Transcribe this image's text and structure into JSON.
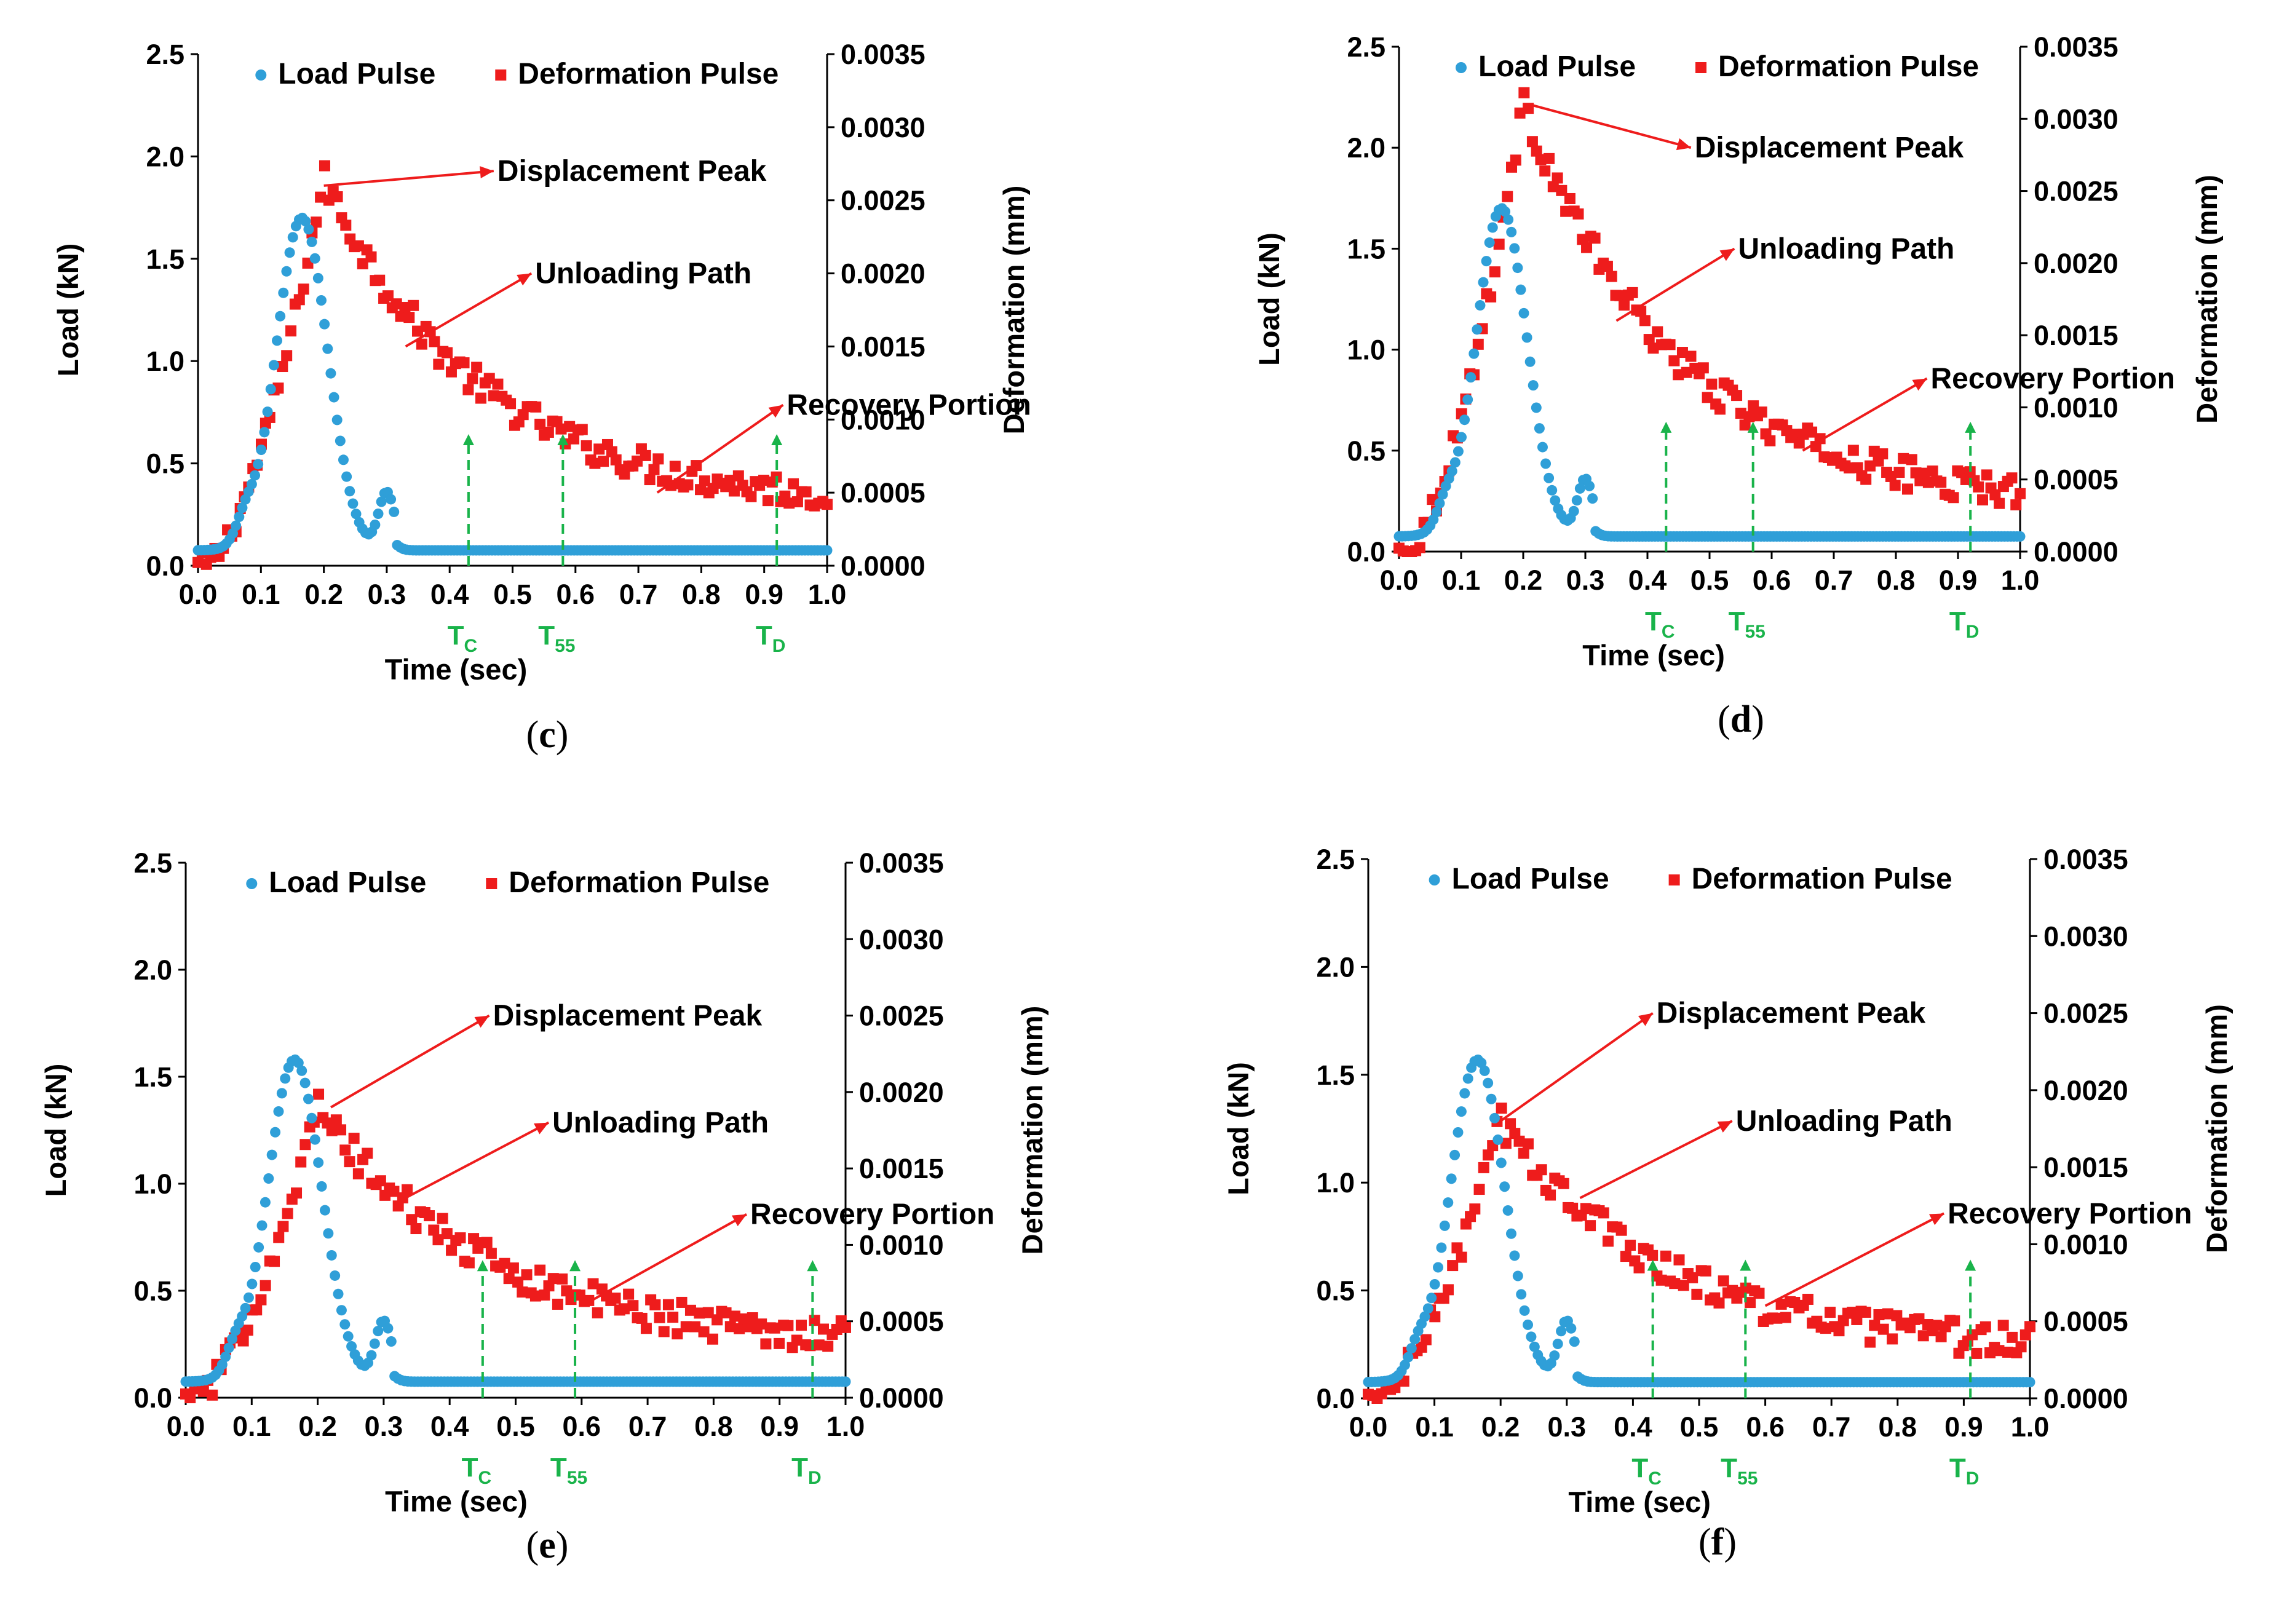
{
  "colors": {
    "load": "#2f9fd8",
    "deformation": "#ee1c1c",
    "annotation": "#ee1c1c",
    "time_marker": "#19b34a",
    "axis": "#000000"
  },
  "chart_data": [
    {
      "panel": "(c)",
      "type": "scatter",
      "xlabel": "Time (sec)",
      "ylabel": "Load (kN)",
      "y2label": "Deformation (mm)",
      "xlim": [
        0.0,
        1.0
      ],
      "ylim": [
        0.0,
        2.5
      ],
      "y2lim": [
        0.0,
        0.0035
      ],
      "xticks": [
        "0.0",
        "0.1",
        "0.2",
        "0.3",
        "0.4",
        "0.5",
        "0.6",
        "0.7",
        "0.8",
        "0.9",
        "1.0"
      ],
      "yticks": [
        "0.0",
        "0.5",
        "1.0",
        "1.5",
        "2.0",
        "2.5"
      ],
      "y2ticks": [
        "0.0000",
        "0.0005",
        "0.0010",
        "0.0015",
        "0.0020",
        "0.0025",
        "0.0030",
        "0.0035"
      ],
      "legend": {
        "placement": "top-center",
        "load": "Load Pulse",
        "deformation": "Deformation Pulse"
      },
      "load_peak": 1.7,
      "def_peak": 0.00265,
      "def_end": 0.0004,
      "series": [
        {
          "name": "Load Pulse",
          "axis": "left",
          "x": [
            0.0,
            0.02,
            0.04,
            0.06,
            0.08,
            0.1,
            0.12,
            0.14,
            0.16,
            0.18,
            0.2,
            0.22,
            0.24,
            0.26,
            0.28,
            0.3,
            0.32,
            0.35,
            0.4,
            0.5,
            0.6,
            0.7,
            0.8,
            0.9,
            1.0
          ],
          "y": [
            0.06,
            0.15,
            0.3,
            0.4,
            0.45,
            0.75,
            1.2,
            1.55,
            1.7,
            1.68,
            1.45,
            1.1,
            0.8,
            0.55,
            0.42,
            0.4,
            0.2,
            0.1,
            0.08,
            0.08,
            0.08,
            0.08,
            0.08,
            0.08,
            0.08
          ]
        },
        {
          "name": "Deformation Pulse",
          "axis": "right",
          "x": [
            0.0,
            0.04,
            0.08,
            0.12,
            0.16,
            0.2,
            0.24,
            0.28,
            0.32,
            0.36,
            0.4,
            0.45,
            0.5,
            0.55,
            0.6,
            0.7,
            0.8,
            0.9,
            1.0
          ],
          "y": [
            0.0,
            0.0002,
            0.0005,
            0.0012,
            0.002,
            0.0027,
            0.0025,
            0.0019,
            0.0015,
            0.0012,
            0.001,
            0.0009,
            0.0008,
            0.0008,
            0.0007,
            0.0006,
            0.0005,
            0.00045,
            0.0004
          ]
        }
      ],
      "annotations": [
        {
          "text": "Displacement Peak",
          "arrow_from": [
            0.2,
            0.0026
          ],
          "arrow_to": [
            0.47,
            0.0027
          ]
        },
        {
          "text": "Unloading Path",
          "arrow_from": [
            0.33,
            0.0015
          ],
          "arrow_to": [
            0.53,
            0.002
          ]
        },
        {
          "text": "Recovery Portion",
          "arrow_from": [
            0.73,
            0.0005
          ],
          "arrow_to": [
            0.93,
            0.0011
          ]
        }
      ],
      "markers": [
        {
          "label": "T",
          "sub": "C",
          "x": 0.43,
          "top": 0.0009
        },
        {
          "label": "T",
          "sub": "55",
          "x": 0.58,
          "top": 0.0009
        },
        {
          "label": "T",
          "sub": "D",
          "x": 0.92,
          "top": 0.0009
        }
      ]
    },
    {
      "panel": "(d)",
      "type": "scatter",
      "xlabel": "Time (sec)",
      "ylabel": "Load (kN)",
      "y2label": "Deformation (mm)",
      "xlim": [
        0.0,
        1.0
      ],
      "ylim": [
        0.0,
        2.5
      ],
      "y2lim": [
        0.0,
        0.0035
      ],
      "xticks": [
        "0.0",
        "0.1",
        "0.2",
        "0.3",
        "0.4",
        "0.5",
        "0.6",
        "0.7",
        "0.8",
        "0.9",
        "1.0"
      ],
      "yticks": [
        "0.0",
        "0.5",
        "1.0",
        "1.5",
        "2.0",
        "2.5"
      ],
      "y2ticks": [
        "0.0000",
        "0.0005",
        "0.0010",
        "0.0015",
        "0.0020",
        "0.0025",
        "0.0030",
        "0.0035"
      ],
      "legend": {
        "placement": "top-center",
        "load": "Load Pulse",
        "deformation": "Deformation Pulse"
      },
      "load_peak": 1.7,
      "def_peak": 0.0031,
      "def_end": 0.0003,
      "series": [
        {
          "name": "Load Pulse",
          "axis": "left",
          "x": [
            0.0,
            0.02,
            0.04,
            0.06,
            0.08,
            0.1,
            0.12,
            0.14,
            0.16,
            0.18,
            0.2,
            0.22,
            0.24,
            0.26,
            0.28,
            0.3,
            0.32,
            0.35,
            0.4,
            0.5,
            0.6,
            0.7,
            0.8,
            0.9,
            1.0
          ],
          "y": [
            0.06,
            0.1,
            0.2,
            0.35,
            0.45,
            0.8,
            1.25,
            1.6,
            1.7,
            1.65,
            1.35,
            1.0,
            0.7,
            0.5,
            0.42,
            0.4,
            0.18,
            0.1,
            0.08,
            0.08,
            0.08,
            0.08,
            0.08,
            0.08,
            0.08
          ]
        },
        {
          "name": "Deformation Pulse",
          "axis": "right",
          "x": [
            0.0,
            0.04,
            0.08,
            0.12,
            0.16,
            0.2,
            0.24,
            0.28,
            0.32,
            0.36,
            0.4,
            0.45,
            0.5,
            0.55,
            0.6,
            0.7,
            0.8,
            0.9,
            1.0
          ],
          "y": [
            0.0,
            0.0001,
            0.0004,
            0.0014,
            0.0025,
            0.0031,
            0.0028,
            0.0022,
            0.0016,
            0.0013,
            0.0011,
            0.001,
            0.0009,
            0.0008,
            0.0008,
            0.0007,
            0.0005,
            0.0004,
            0.0003
          ]
        }
      ],
      "annotations": [
        {
          "text": "Displacement Peak",
          "arrow_from": [
            0.21,
            0.0031
          ],
          "arrow_to": [
            0.47,
            0.0028
          ]
        },
        {
          "text": "Unloading Path",
          "arrow_from": [
            0.35,
            0.0016
          ],
          "arrow_to": [
            0.54,
            0.0021
          ]
        },
        {
          "text": "Recovery Portion",
          "arrow_from": [
            0.65,
            0.0007
          ],
          "arrow_to": [
            0.85,
            0.0012
          ]
        }
      ],
      "markers": [
        {
          "label": "T",
          "sub": "C",
          "x": 0.43,
          "top": 0.0009
        },
        {
          "label": "T",
          "sub": "55",
          "x": 0.57,
          "top": 0.0009
        },
        {
          "label": "T",
          "sub": "D",
          "x": 0.92,
          "top": 0.0009
        }
      ]
    },
    {
      "panel": "(e)",
      "type": "scatter",
      "xlabel": "Time (sec)",
      "ylabel": "Load (kN)",
      "y2label": "Deformation (mm)",
      "xlim": [
        0.0,
        1.0
      ],
      "ylim": [
        0.0,
        2.5
      ],
      "y2lim": [
        0.0,
        0.0035
      ],
      "xticks": [
        "0.0",
        "0.1",
        "0.2",
        "0.3",
        "0.4",
        "0.5",
        "0.6",
        "0.7",
        "0.8",
        "0.9",
        "1.0"
      ],
      "yticks": [
        "0.0",
        "0.5",
        "1.0",
        "1.5",
        "2.0",
        "2.5"
      ],
      "y2ticks": [
        "0.0000",
        "0.0005",
        "0.0010",
        "0.0015",
        "0.0020",
        "0.0025",
        "0.0030",
        "0.0035"
      ],
      "legend": {
        "placement": "top-center",
        "load": "Load Pulse",
        "deformation": "Deformation Pulse"
      },
      "load_peak": 1.58,
      "def_peak": 0.0019,
      "def_end": 0.00035,
      "series": [
        {
          "name": "Load Pulse",
          "axis": "left",
          "x": [
            0.0,
            0.02,
            0.04,
            0.06,
            0.08,
            0.1,
            0.12,
            0.14,
            0.16,
            0.18,
            0.2,
            0.22,
            0.24,
            0.26,
            0.28,
            0.3,
            0.32,
            0.35,
            0.4,
            0.5,
            0.6,
            0.7,
            0.8,
            0.9,
            1.0
          ],
          "y": [
            0.07,
            0.1,
            0.2,
            0.35,
            0.45,
            0.7,
            1.1,
            1.45,
            1.58,
            1.55,
            1.35,
            1.05,
            0.75,
            0.55,
            0.42,
            0.4,
            0.18,
            0.1,
            0.08,
            0.08,
            0.08,
            0.08,
            0.08,
            0.08,
            0.08
          ]
        },
        {
          "name": "Deformation Pulse",
          "axis": "right",
          "x": [
            0.0,
            0.04,
            0.08,
            0.12,
            0.16,
            0.2,
            0.24,
            0.28,
            0.32,
            0.36,
            0.4,
            0.45,
            0.5,
            0.55,
            0.6,
            0.7,
            0.8,
            0.9,
            1.0
          ],
          "y": [
            0.0,
            0.0002,
            0.0004,
            0.0009,
            0.0016,
            0.0019,
            0.0018,
            0.0015,
            0.0012,
            0.001,
            0.0009,
            0.0008,
            0.0007,
            0.0006,
            0.0006,
            0.0005,
            0.00045,
            0.0004,
            0.00035
          ]
        }
      ],
      "annotations": [
        {
          "text": "Displacement Peak",
          "arrow_from": [
            0.22,
            0.0019
          ],
          "arrow_to": [
            0.46,
            0.0025
          ]
        },
        {
          "text": "Unloading Path",
          "arrow_from": [
            0.33,
            0.0013
          ],
          "arrow_to": [
            0.55,
            0.0018
          ]
        },
        {
          "text": "Recovery Portion",
          "arrow_from": [
            0.6,
            0.0006
          ],
          "arrow_to": [
            0.85,
            0.0012
          ]
        }
      ],
      "markers": [
        {
          "label": "T",
          "sub": "C",
          "x": 0.45,
          "top": 0.0009
        },
        {
          "label": "T",
          "sub": "55",
          "x": 0.59,
          "top": 0.0009
        },
        {
          "label": "T",
          "sub": "D",
          "x": 0.95,
          "top": 0.0009
        }
      ]
    },
    {
      "panel": "(f)",
      "type": "scatter",
      "xlabel": "Time (sec)",
      "ylabel": "Load (kN)",
      "y2label": "Deformation (mm)",
      "xlim": [
        0.0,
        1.0
      ],
      "ylim": [
        0.0,
        2.5
      ],
      "y2lim": [
        0.0,
        0.0035
      ],
      "xticks": [
        "0.0",
        "0.1",
        "0.2",
        "0.3",
        "0.4",
        "0.5",
        "0.6",
        "0.7",
        "0.8",
        "0.9",
        "1.0"
      ],
      "yticks": [
        "0.0",
        "0.5",
        "1.0",
        "1.5",
        "2.0",
        "2.5"
      ],
      "y2ticks": [
        "0.0000",
        "0.0005",
        "0.0010",
        "0.0015",
        "0.0020",
        "0.0025",
        "0.0030",
        "0.0035"
      ],
      "legend": {
        "placement": "top-center",
        "load": "Load Pulse",
        "deformation": "Deformation Pulse"
      },
      "load_peak": 1.57,
      "def_peak": 0.0018,
      "def_end": 0.0003,
      "series": [
        {
          "name": "Load Pulse",
          "axis": "left",
          "x": [
            0.0,
            0.02,
            0.04,
            0.06,
            0.08,
            0.1,
            0.12,
            0.14,
            0.16,
            0.18,
            0.2,
            0.22,
            0.24,
            0.26,
            0.28,
            0.3,
            0.32,
            0.35,
            0.4,
            0.5,
            0.6,
            0.7,
            0.8,
            0.9,
            1.0
          ],
          "y": [
            0.07,
            0.08,
            0.12,
            0.25,
            0.4,
            0.7,
            1.1,
            1.45,
            1.57,
            1.52,
            1.3,
            1.0,
            0.7,
            0.5,
            0.42,
            0.38,
            0.18,
            0.1,
            0.08,
            0.07,
            0.07,
            0.07,
            0.07,
            0.07,
            0.07
          ]
        },
        {
          "name": "Deformation Pulse",
          "axis": "right",
          "x": [
            0.0,
            0.04,
            0.08,
            0.12,
            0.16,
            0.2,
            0.24,
            0.28,
            0.32,
            0.36,
            0.4,
            0.45,
            0.5,
            0.55,
            0.6,
            0.7,
            0.8,
            0.9,
            1.0
          ],
          "y": [
            0.0,
            0.0,
            0.0003,
            0.0009,
            0.0015,
            0.0018,
            0.0017,
            0.0014,
            0.0012,
            0.001,
            0.0009,
            0.0008,
            0.0008,
            0.0007,
            0.0007,
            0.0005,
            0.0005,
            0.0004,
            0.0003
          ]
        }
      ],
      "annotations": [
        {
          "text": "Displacement Peak",
          "arrow_from": [
            0.2,
            0.0018
          ],
          "arrow_to": [
            0.43,
            0.0025
          ]
        },
        {
          "text": "Unloading Path",
          "arrow_from": [
            0.32,
            0.0013
          ],
          "arrow_to": [
            0.55,
            0.0018
          ]
        },
        {
          "text": "Recovery Portion",
          "arrow_from": [
            0.6,
            0.0006
          ],
          "arrow_to": [
            0.87,
            0.0012
          ]
        }
      ],
      "markers": [
        {
          "label": "T",
          "sub": "C",
          "x": 0.43,
          "top": 0.0009
        },
        {
          "label": "T",
          "sub": "55",
          "x": 0.57,
          "top": 0.0009
        },
        {
          "label": "T",
          "sub": "D",
          "x": 0.91,
          "top": 0.0009
        }
      ]
    }
  ]
}
